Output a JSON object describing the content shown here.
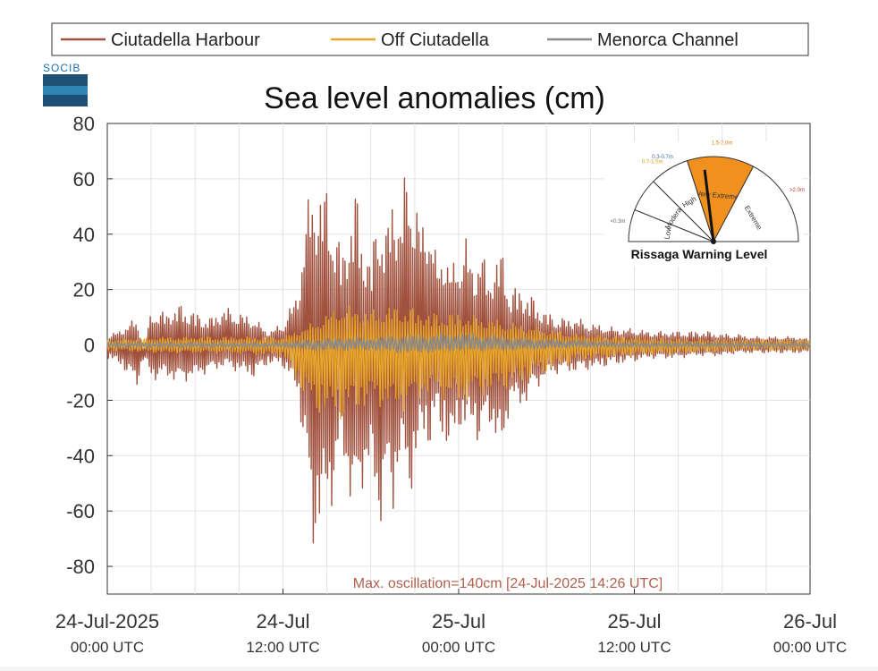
{
  "logo_text": "SOCIB",
  "chart_data": {
    "type": "line",
    "title": "Sea level anomalies (cm)",
    "xlabel": "",
    "ylabel": "",
    "ylim": [
      -90,
      80
    ],
    "yticks": [
      -80,
      -60,
      -40,
      -20,
      0,
      20,
      40,
      60,
      80
    ],
    "grid": true,
    "legend_position": "top",
    "xlim_hours": [
      0,
      48
    ],
    "x_ticks": [
      {
        "date": "24-Jul-2025",
        "time": "00:00 UTC",
        "hour": 0
      },
      {
        "date": "24-Jul",
        "time": "12:00 UTC",
        "hour": 12
      },
      {
        "date": "25-Jul",
        "time": "00:00 UTC",
        "hour": 24
      },
      {
        "date": "25-Jul",
        "time": "12:00 UTC",
        "hour": 36
      },
      {
        "date": "26-Jul",
        "time": "00:00 UTC",
        "hour": 48
      }
    ],
    "series": [
      {
        "name": "Ciutadella Harbour",
        "color": "#a0523f",
        "hours": [
          0,
          1,
          2,
          2.5,
          3,
          4,
          5,
          6,
          7,
          8,
          9,
          10,
          11,
          12,
          13,
          13.5,
          14,
          14.4,
          15,
          15.5,
          16,
          16.5,
          17,
          17.5,
          18,
          18.5,
          19,
          19.5,
          20,
          20.5,
          21,
          21.5,
          22,
          22.5,
          23,
          23.5,
          24,
          24.5,
          25,
          25.5,
          26,
          26.5,
          27,
          27.5,
          28,
          28.5,
          29,
          29.5,
          30,
          31,
          32,
          33,
          34,
          35,
          36,
          37,
          38,
          39,
          40,
          41,
          42,
          43,
          44,
          45,
          46,
          47,
          48
        ],
        "max_cm": [
          3,
          6,
          10,
          -2,
          13,
          12,
          15,
          12,
          10,
          14,
          12,
          10,
          5,
          8,
          20,
          45,
          63,
          55,
          60,
          45,
          35,
          45,
          58,
          40,
          30,
          55,
          40,
          60,
          48,
          70,
          55,
          45,
          52,
          30,
          38,
          28,
          35,
          40,
          28,
          38,
          25,
          32,
          35,
          20,
          22,
          20,
          18,
          15,
          12,
          10,
          10,
          8,
          7,
          6,
          6,
          5,
          5,
          5,
          5,
          5,
          4,
          4,
          3,
          3,
          3,
          3,
          2
        ],
        "min_cm": [
          -5,
          -8,
          -16,
          -5,
          -13,
          -12,
          -14,
          -12,
          -10,
          -8,
          -10,
          -12,
          -7,
          -8,
          -18,
          -42,
          -78,
          -70,
          -65,
          -55,
          -40,
          -55,
          -68,
          -50,
          -48,
          -70,
          -55,
          -65,
          -40,
          -60,
          -48,
          -35,
          -38,
          -30,
          -35,
          -45,
          -30,
          -35,
          -30,
          -40,
          -28,
          -35,
          -45,
          -20,
          -25,
          -22,
          -18,
          -15,
          -12,
          -10,
          -10,
          -9,
          -8,
          -7,
          -6,
          -5,
          -5,
          -5,
          -4,
          -4,
          -4,
          -3,
          -3,
          -3,
          -3,
          -3,
          -3
        ]
      },
      {
        "name": "Off Ciutadella",
        "color": "#e8a72a",
        "hours": [
          0,
          4,
          8,
          12,
          14,
          16,
          18,
          20,
          22,
          24,
          26,
          28,
          30,
          32,
          36,
          40,
          44,
          48
        ],
        "max_cm": [
          2,
          3,
          3,
          3,
          8,
          15,
          13,
          15,
          12,
          12,
          10,
          8,
          6,
          4,
          3,
          2,
          2,
          2
        ],
        "min_cm": [
          -2,
          -3,
          -3,
          -4,
          -25,
          -28,
          -22,
          -25,
          -18,
          -22,
          -18,
          -15,
          -10,
          -6,
          -4,
          -3,
          -2,
          -2
        ]
      },
      {
        "name": "Menorca Channel",
        "color": "#8a8a8a",
        "hours": [
          0,
          8,
          12,
          14,
          16,
          18,
          20,
          22,
          24,
          26,
          28,
          32,
          36,
          40,
          48
        ],
        "max_cm": [
          1,
          1,
          1,
          2,
          3,
          3,
          4,
          4,
          5,
          4,
          3,
          2,
          1,
          1,
          1
        ],
        "min_cm": [
          -1,
          -1,
          -1,
          -2,
          -2,
          -2,
          -3,
          -3,
          -2,
          -2,
          -2,
          -1,
          -1,
          -1,
          -1
        ]
      }
    ],
    "annotation": "Max. oscillation=140cm [24-Jul-2025 14:26 UTC]",
    "annotation_color": "#b0604e"
  },
  "inset": {
    "title": "Rissaga Warning Level",
    "level": "Extreme",
    "categories": [
      {
        "label": "Low",
        "range": "<0.3m",
        "range_color": "#666666"
      },
      {
        "label": "Moderate",
        "range": "",
        "range_color": "#666666"
      },
      {
        "label": "High",
        "range": "0.3-0.7m",
        "range_color": "#3a6ea5"
      },
      {
        "label": "Very Extreme",
        "range": "1.5-2.0m",
        "range_color": "#e07d10"
      },
      {
        "label": "Extreme",
        "range": ">2.0m",
        "range_color": "#c0392b"
      }
    ],
    "extra_range": "0.7-1.5m",
    "extra_range_color": "#d4a017",
    "highlight_color": "#f0901e"
  }
}
